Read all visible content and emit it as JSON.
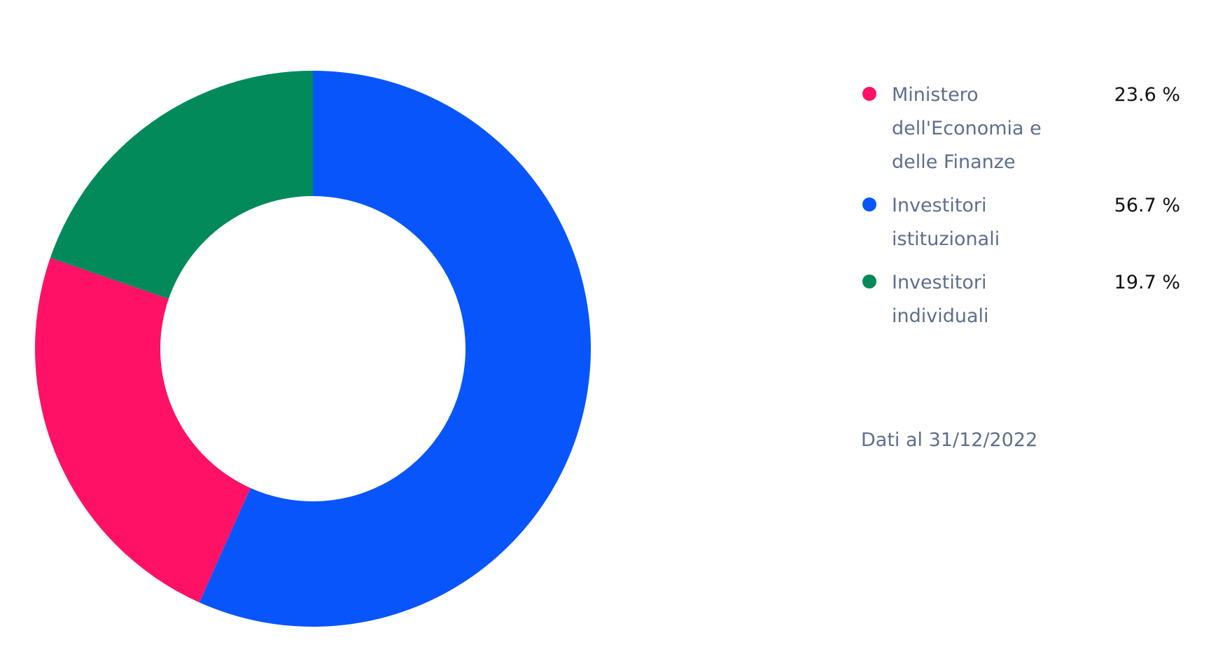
{
  "chart_data": {
    "type": "donut",
    "categories": [
      "Ministero dell'Economia e delle Finanze",
      "Investitori istituzionali",
      "Investitori individuali"
    ],
    "values": [
      23.6,
      56.7,
      19.7
    ],
    "value_labels": [
      "23.6 %",
      "56.7 %",
      "19.7 %"
    ],
    "colors": [
      "#ff1166",
      "#0855fc",
      "#028a5a"
    ],
    "note": "Dati al 31/12/2022"
  }
}
